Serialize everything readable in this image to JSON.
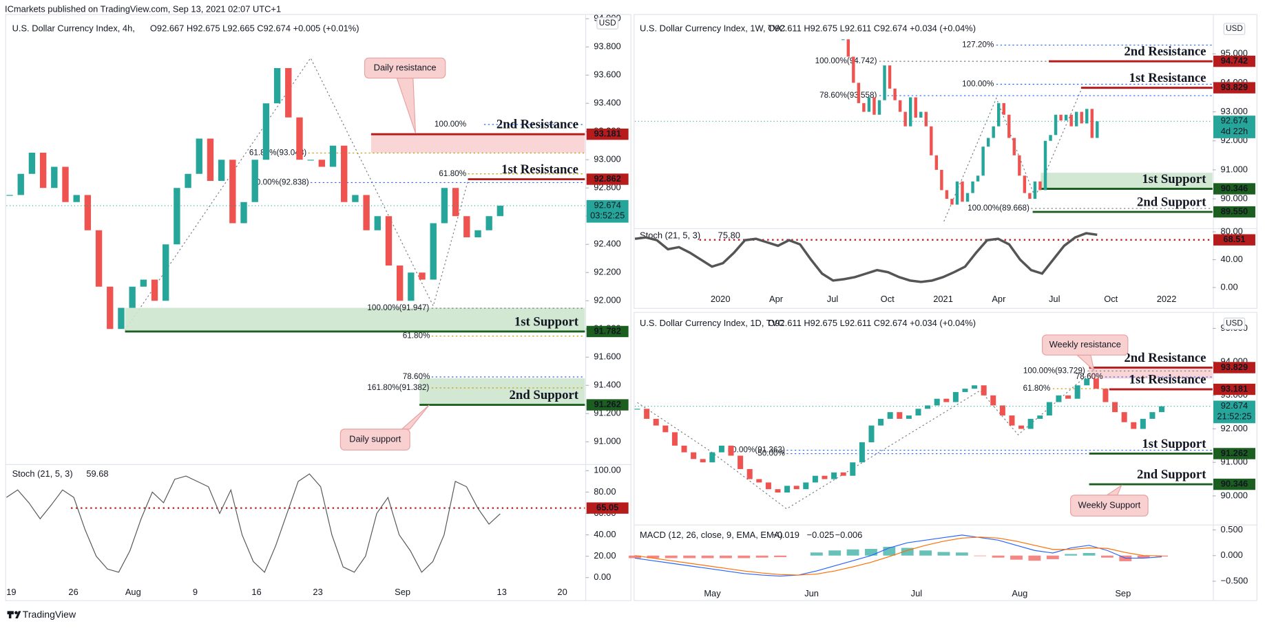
{
  "header": {
    "text": "ICmarkets published on TradingView.com, Sep 13, 2021 02:07 UTC+1"
  },
  "footer": {
    "brand": "TradingView"
  },
  "chart_data": [
    {
      "type": "candlestick",
      "title": "U.S. Dollar Currency Index, 4h,",
      "quote": "O92.667 H92.675 L92.665 C92.674 +0.005 (+0.01%)",
      "currency": "USD",
      "ylim": [
        90.85,
        94.03
      ],
      "yticks": [
        {
          "value": 91,
          "label": "91.000"
        },
        {
          "value": 91.2,
          "label": "91.200"
        },
        {
          "value": 91.4,
          "label": "91.400"
        },
        {
          "value": 91.6,
          "label": "91.600"
        },
        {
          "value": 91.8,
          "label": "91.800"
        },
        {
          "value": 92,
          "label": "92.000"
        },
        {
          "value": 92.2,
          "label": "92.200"
        },
        {
          "value": 92.4,
          "label": "92.400"
        },
        {
          "value": 92.6,
          "label": "92.600"
        },
        {
          "value": 92.8,
          "label": "92.800"
        },
        {
          "value": 93,
          "label": "93.000"
        },
        {
          "value": 93.2,
          "label": "93.200"
        },
        {
          "value": 93.4,
          "label": "93.400"
        },
        {
          "value": 93.6,
          "label": "93.600"
        },
        {
          "value": 93.8,
          "label": "93.800"
        },
        {
          "value": 94,
          "label": "94.000"
        }
      ],
      "values": [
        92.75,
        92.9,
        93.05,
        92.8,
        92.95,
        92.7,
        92.75,
        92.5,
        92.1,
        91.8,
        91.95,
        92.1,
        92.15,
        92.0,
        92.4,
        92.8,
        92.9,
        93.15,
        92.85,
        93.0,
        92.55,
        92.7,
        93.0,
        93.4,
        93.65,
        93.3,
        93.0,
        93.0,
        92.95,
        93.1,
        92.7,
        92.75,
        92.5,
        92.6,
        92.25,
        92.0,
        92.2,
        92.15,
        92.55,
        92.8,
        92.6,
        92.45,
        92.5,
        92.6,
        92.674
      ],
      "up_color": "#26a69a",
      "down_color": "#ef5350",
      "last": {
        "value": 92.674,
        "label": "92.674",
        "countdown": "03:52:25",
        "color": "#26a69a"
      },
      "levels": [
        {
          "value": 93.181,
          "label": "93.181",
          "text": "2nd Resistance",
          "color": "#b71c1c"
        },
        {
          "value": 92.862,
          "label": "92.862",
          "text": "1st Resistance",
          "color": "#b71c1c"
        },
        {
          "value": 91.782,
          "label": "91.782",
          "text": "1st Support",
          "color": "#1b5e20"
        },
        {
          "value": 91.262,
          "label": "91.262",
          "text": "2nd Support",
          "color": "#1b5e20"
        }
      ],
      "zones": [
        {
          "from": 93.181,
          "to": 93.05,
          "color": "#f9d0d0"
        },
        {
          "from": 91.782,
          "to": 91.95,
          "color": "#cde6cd"
        },
        {
          "from": 91.262,
          "to": 91.45,
          "color": "#cde6cd"
        }
      ],
      "fibs": [
        {
          "value": 93.25,
          "label": "100.00%",
          "color": "#2962ff"
        },
        {
          "value": 93.048,
          "label": "61.80%(93.048)",
          "color": "#c99400"
        },
        {
          "value": 92.838,
          "label": "50.00%(92.838)",
          "color": "#2962ff"
        },
        {
          "value": 92.9,
          "label": "61.80%",
          "color": "#c99400"
        },
        {
          "value": 91.947,
          "label": "100.00%(91.947)",
          "color": "#787b86"
        },
        {
          "value": 91.75,
          "label": "61.80%",
          "color": "#c99400"
        },
        {
          "value": 91.46,
          "label": "78.60%",
          "color": "#2962ff"
        },
        {
          "value": 91.382,
          "label": "161.80%(91.382)",
          "color": "#c99400"
        }
      ],
      "callouts": [
        "Daily resistance",
        "Daily support"
      ]
    },
    {
      "type": "line",
      "title": "Stoch (21, 5, 3)",
      "readout": "59.68",
      "color": "#555555",
      "ylim": [
        -8,
        105
      ],
      "yticks": [
        {
          "value": 0,
          "label": "0.00"
        },
        {
          "value": 20,
          "label": "20.00"
        },
        {
          "value": 40,
          "label": "40.00"
        },
        {
          "value": 60,
          "label": "60.00"
        },
        {
          "value": 80,
          "label": "80.00"
        },
        {
          "value": 100,
          "label": "100.00"
        }
      ],
      "values": [
        75,
        82,
        70,
        55,
        68,
        82,
        75,
        45,
        20,
        8,
        5,
        25,
        55,
        80,
        70,
        92,
        95,
        90,
        85,
        60,
        82,
        40,
        15,
        5,
        30,
        60,
        90,
        97,
        85,
        40,
        10,
        5,
        20,
        60,
        75,
        40,
        25,
        5,
        15,
        40,
        90,
        85,
        65,
        50,
        59.68
      ],
      "levels": [
        {
          "value": 65.05,
          "label": "65.05",
          "color": "#b71c1c"
        }
      ],
      "xticks": [
        "19",
        "26",
        "Aug",
        "9",
        "16",
        "23",
        "Sep",
        "13",
        "20"
      ]
    },
    {
      "type": "candlestick",
      "title": "U.S. Dollar Currency Index, 1W, TVC",
      "quote": "O92.611 H92.675 L92.611 C92.674 +0.034 (+0.04%)",
      "currency": "USD",
      "ylim": [
        89,
        96.3
      ],
      "yticks": [
        {
          "value": 90,
          "label": "90.000"
        },
        {
          "value": 91,
          "label": "91.000"
        },
        {
          "value": 92,
          "label": "92.000"
        },
        {
          "value": 93,
          "label": "93.000"
        },
        {
          "value": 94,
          "label": "94.000"
        },
        {
          "value": 95,
          "label": "95.000"
        }
      ],
      "values": [
        95.5,
        94.9,
        94.0,
        93.3,
        93.0,
        93.5,
        92.9,
        93.4,
        94.6,
        93.8,
        93.4,
        93.0,
        92.5,
        93.5,
        92.8,
        93.0,
        92.5,
        91.5,
        91.0,
        90.3,
        90.0,
        89.8,
        90.6,
        89.9,
        90.2,
        90.6,
        90.8,
        91.8,
        92.1,
        92.5,
        93.3,
        92.9,
        92.1,
        91.5,
        90.8,
        90.2,
        90.0,
        90.6,
        90.3,
        92.0,
        92.2,
        92.9,
        92.7,
        92.9,
        92.5,
        93.0,
        92.6,
        93.1,
        92.1,
        92.674
      ],
      "up_color": "#26a69a",
      "down_color": "#ef5350",
      "last": {
        "value": 92.674,
        "label": "92.674",
        "countdown": "4d 22h",
        "color": "#26a69a"
      },
      "levels": [
        {
          "value": 94.742,
          "label": "94.742",
          "text": "2nd Resistance",
          "color": "#b71c1c"
        },
        {
          "value": 93.829,
          "label": "93.829",
          "text": "1st Resistance",
          "color": "#b71c1c"
        },
        {
          "value": 90.346,
          "label": "90.346",
          "text": "1st Support",
          "color": "#1b5e20"
        },
        {
          "value": 89.55,
          "label": "89.550",
          "text": "2nd Support",
          "color": "#1b5e20"
        }
      ],
      "zones": [
        {
          "from": 90.346,
          "to": 90.9,
          "color": "#cde6cd"
        }
      ],
      "fibs": [
        {
          "value": 95.3,
          "label": "127.20%",
          "color": "#2962ff"
        },
        {
          "value": 94.742,
          "label": "100.00%(94.742)",
          "color": "#787b86"
        },
        {
          "value": 93.95,
          "label": "100.00%",
          "color": "#2962ff"
        },
        {
          "value": 93.558,
          "label": "78.60%(93.558)",
          "color": "#2962ff"
        },
        {
          "value": 89.668,
          "label": "100.00%(89.668)",
          "color": "#787b86"
        }
      ],
      "callouts": []
    },
    {
      "type": "line",
      "title": "Stoch (21, 5, 3)",
      "readout": "75.80",
      "color": "#555555",
      "width": 3,
      "ylim": [
        -5.7,
        84.6
      ],
      "yticks": [
        {
          "value": 0,
          "label": "0.00"
        },
        {
          "value": 40,
          "label": "40.00"
        },
        {
          "value": 80,
          "label": "80.00"
        }
      ],
      "values": [
        70,
        72,
        68,
        55,
        58,
        50,
        40,
        30,
        35,
        50,
        68,
        70,
        65,
        60,
        68,
        62,
        40,
        20,
        10,
        12,
        15,
        20,
        25,
        22,
        15,
        10,
        8,
        10,
        15,
        22,
        30,
        50,
        68,
        70,
        62,
        40,
        25,
        20,
        40,
        60,
        72,
        78,
        75.8
      ],
      "levels": [
        {
          "value": 68.51,
          "label": "68.51",
          "color": "#b71c1c"
        }
      ],
      "xticks": [
        "2020",
        "Apr",
        "Jul",
        "Oct",
        "2021",
        "Apr",
        "Jul",
        "Oct",
        "2022"
      ]
    },
    {
      "type": "candlestick",
      "title": "U.S. Dollar Currency Index, 1D, TVC",
      "quote": "O92.611 H92.675 L92.611 C92.674 +0.034 (+0.04%)",
      "currency": "USD",
      "ylim": [
        89.18,
        95.43
      ],
      "yticks": [
        {
          "value": 90,
          "label": "90.000"
        },
        {
          "value": 91,
          "label": "91.000"
        },
        {
          "value": 92,
          "label": "92.000"
        },
        {
          "value": 93,
          "label": "93.000"
        },
        {
          "value": 94,
          "label": "94.000"
        },
        {
          "value": 95,
          "label": "95.000"
        }
      ],
      "values": [
        92.6,
        92.3,
        92.1,
        91.9,
        91.5,
        91.3,
        91.1,
        91.0,
        91.3,
        91.5,
        91.2,
        90.8,
        90.5,
        90.4,
        90.2,
        90.1,
        90.3,
        90.2,
        90.4,
        90.6,
        90.5,
        90.7,
        90.6,
        91.0,
        91.6,
        92.1,
        92.3,
        92.5,
        92.3,
        92.4,
        92.6,
        92.7,
        92.9,
        92.8,
        93.1,
        93.2,
        93.3,
        93.0,
        92.7,
        92.4,
        92.1,
        92.0,
        92.3,
        92.4,
        92.8,
        93.0,
        92.9,
        93.3,
        93.5,
        93.2,
        92.8,
        92.5,
        92.2,
        92.0,
        92.3,
        92.5,
        92.674
      ],
      "up_color": "#26a69a",
      "down_color": "#ef5350",
      "last": {
        "value": 92.674,
        "label": "92.674",
        "countdown": "21:52:25",
        "color": "#26a69a"
      },
      "levels": [
        {
          "value": 93.829,
          "label": "93.829",
          "text": "2nd Resistance",
          "color": "#b71c1c"
        },
        {
          "value": 93.181,
          "label": "93.181",
          "text": "1st Resistance",
          "color": "#b71c1c"
        },
        {
          "value": 91.262,
          "label": "91.262",
          "text": "1st Support",
          "color": "#1b5e20"
        },
        {
          "value": 90.346,
          "label": "90.346",
          "text": "2nd Support",
          "color": "#1b5e20"
        }
      ],
      "zones": [
        {
          "from": 93.829,
          "to": 93.5,
          "color": "#f9d0d0"
        }
      ],
      "fibs": [
        {
          "value": 93.729,
          "label": "100.00%(93.729)",
          "color": "#787b86"
        },
        {
          "value": 93.55,
          "label": "78.60%",
          "color": "#2962ff"
        },
        {
          "value": 93.2,
          "label": "61.80%",
          "color": "#c99400"
        },
        {
          "value": 91.363,
          "label": "50.00%(91.363)",
          "color": "#2962ff"
        },
        {
          "value": 91.26,
          "label": "50.00%",
          "color": "#2962ff"
        }
      ],
      "callouts": [
        "Weekly resistance",
        "Weekly Support"
      ]
    },
    {
      "type": "macd",
      "title": "MACD (12, 26, close, 9, EMA, EMA)",
      "ylim": [
        -0.58,
        0.597
      ],
      "yticks": [
        {
          "value": -0.5,
          "label": "−0.500"
        },
        {
          "value": 0,
          "label": "0.000"
        },
        {
          "value": 0.5,
          "label": "0.500"
        }
      ],
      "series": [
        {
          "style": "histogram",
          "readout": "−0.019",
          "color": "#f4a6a6",
          "up_color": "#26a69a",
          "down_color": "#ef5350",
          "values": [
            -0.05,
            -0.05,
            -0.05,
            -0.05,
            -0.05,
            -0.05,
            -0.05,
            -0.04,
            -0.03,
            0.0,
            0.06,
            0.1,
            0.12,
            0.13,
            0.17,
            0.15,
            0.1,
            0.07,
            0.06,
            -0.01,
            -0.04,
            -0.08,
            -0.1,
            -0.07,
            0.03,
            0.05,
            -0.04,
            -0.11,
            -0.05,
            -0.019
          ]
        },
        {
          "style": "line",
          "readout": "−0.025",
          "color": "#2962ff",
          "values": [
            -0.05,
            -0.1,
            -0.15,
            -0.2,
            -0.25,
            -0.3,
            -0.35,
            -0.38,
            -0.4,
            -0.38,
            -0.3,
            -0.2,
            -0.1,
            0.0,
            0.15,
            0.25,
            0.3,
            0.35,
            0.4,
            0.35,
            0.3,
            0.2,
            0.1,
            0.05,
            0.15,
            0.2,
            0.1,
            -0.05,
            -0.05,
            -0.025
          ]
        },
        {
          "style": "line",
          "readout": "−0.006",
          "color": "#ff6d00",
          "values": [
            0.0,
            -0.05,
            -0.1,
            -0.15,
            -0.2,
            -0.25,
            -0.3,
            -0.34,
            -0.37,
            -0.38,
            -0.36,
            -0.3,
            -0.22,
            -0.13,
            -0.02,
            0.1,
            0.2,
            0.28,
            0.34,
            0.36,
            0.34,
            0.28,
            0.2,
            0.12,
            0.12,
            0.15,
            0.14,
            0.06,
            0.0,
            -0.006
          ]
        }
      ],
      "xticks": [
        "May",
        "Jun",
        "Jul",
        "Aug",
        "Sep"
      ]
    }
  ]
}
